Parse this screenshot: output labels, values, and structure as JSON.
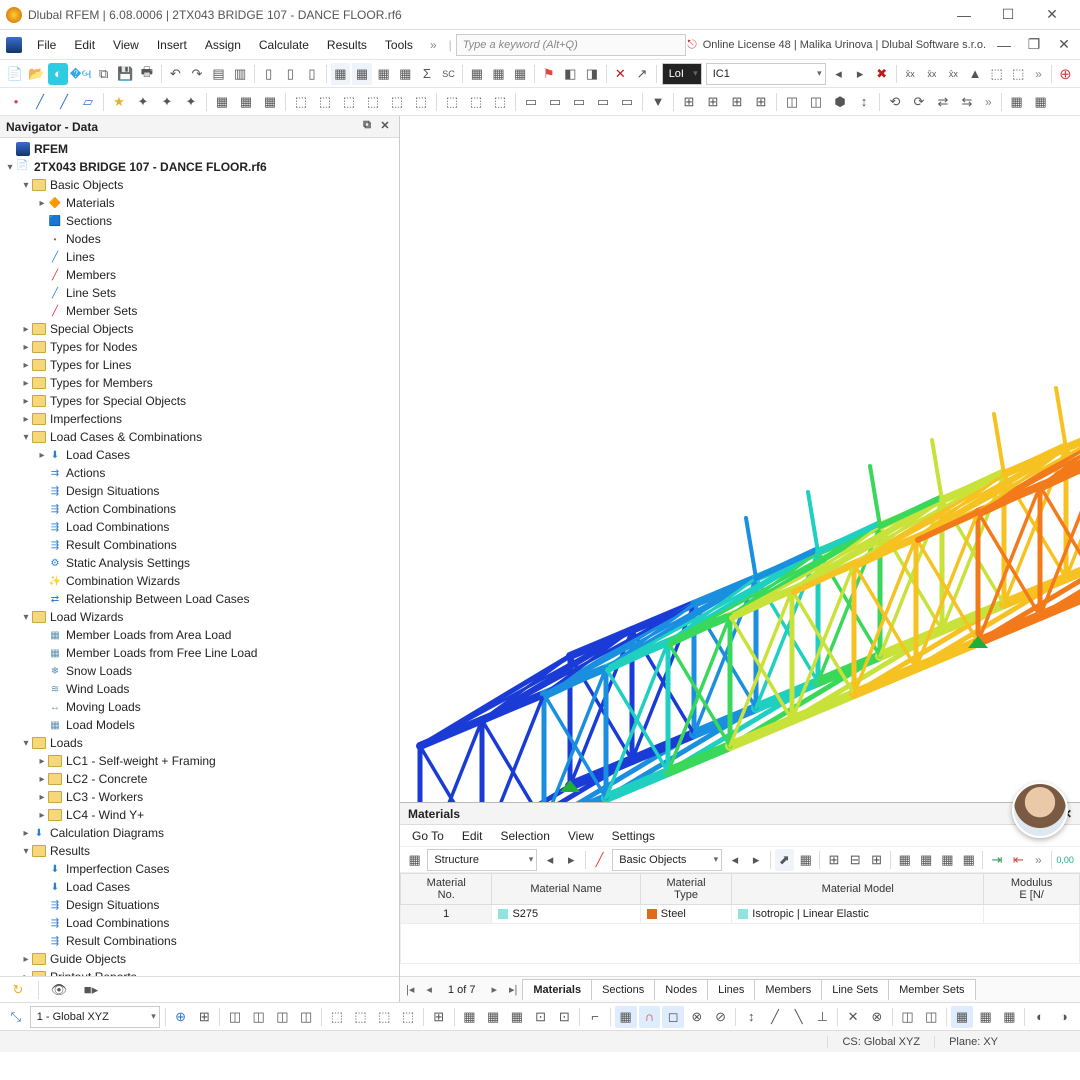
{
  "title": "Dlubal RFEM | 6.08.0006 | 2TX043 BRIDGE 107 - DANCE FLOOR.rf6",
  "license": "Online License 48 | Malika Urinova | Dlubal Software s.r.o.",
  "search_placeholder": "Type a keyword (Alt+Q)",
  "menu": [
    "File",
    "Edit",
    "View",
    "Insert",
    "Assign",
    "Calculate",
    "Results",
    "Tools"
  ],
  "combo_lol": "LoI",
  "combo_ic": "IC1",
  "navigator": {
    "title": "Navigator - Data",
    "root": "RFEM",
    "file": "2TX043 BRIDGE 107 - DANCE FLOOR.rf6",
    "basic_objects": "Basic Objects",
    "basic_children": [
      "Materials",
      "Sections",
      "Nodes",
      "Lines",
      "Members",
      "Line Sets",
      "Member Sets"
    ],
    "top_folders": [
      "Special Objects",
      "Types for Nodes",
      "Types for Lines",
      "Types for Members",
      "Types for Special Objects",
      "Imperfections"
    ],
    "lcc": "Load Cases & Combinations",
    "lcc_children": [
      "Load Cases",
      "Actions",
      "Design Situations",
      "Action Combinations",
      "Load Combinations",
      "Result Combinations",
      "Static Analysis Settings",
      "Combination Wizards",
      "Relationship Between Load Cases"
    ],
    "load_wizards": "Load Wizards",
    "lw_children": [
      "Member Loads from Area Load",
      "Member Loads from Free Line Load",
      "Snow Loads",
      "Wind Loads",
      "Moving Loads",
      "Load Models"
    ],
    "loads": "Loads",
    "loads_children": [
      "LC1 - Self-weight + Framing",
      "LC2 - Concrete",
      "LC3 - Workers",
      "LC4 - Wind Y+"
    ],
    "calc_diag": "Calculation Diagrams",
    "results": "Results",
    "results_children": [
      "Imperfection Cases",
      "Load Cases",
      "Design Situations",
      "Load Combinations",
      "Result Combinations"
    ],
    "guide": "Guide Objects",
    "printout": "Printout Reports"
  },
  "materials_panel": {
    "title": "Materials",
    "menu": [
      "Go To",
      "Edit",
      "Selection",
      "View",
      "Settings"
    ],
    "dd1": "Structure",
    "dd2": "Basic Objects",
    "cols": [
      "Material\nNo.",
      "Material Name",
      "Material\nType",
      "Material Model",
      "Modulus\nE [N/"
    ],
    "row": {
      "no": "1",
      "name": "S275",
      "type": "Steel",
      "model": "Isotropic | Linear Elastic"
    },
    "name_sw": "#8fe3e0",
    "type_sw": "#e06a1b",
    "model_sw": "#8fe3e0",
    "page": "1 of 7",
    "tabs": [
      "Materials",
      "Sections",
      "Nodes",
      "Lines",
      "Members",
      "Line Sets",
      "Member Sets"
    ]
  },
  "bottom": {
    "cs_dd": "1 - Global XYZ"
  },
  "status": {
    "cs": "CS: Global XYZ",
    "plane": "Plane: XY"
  },
  "colors": {
    "bg": "#ffffff",
    "gradient": [
      "#1a3bd6",
      "#1a8fe0",
      "#1fd0c0",
      "#3ad85a",
      "#c8e23a",
      "#f6c221",
      "#f37a1a",
      "#e92b18",
      "#b81510"
    ]
  }
}
